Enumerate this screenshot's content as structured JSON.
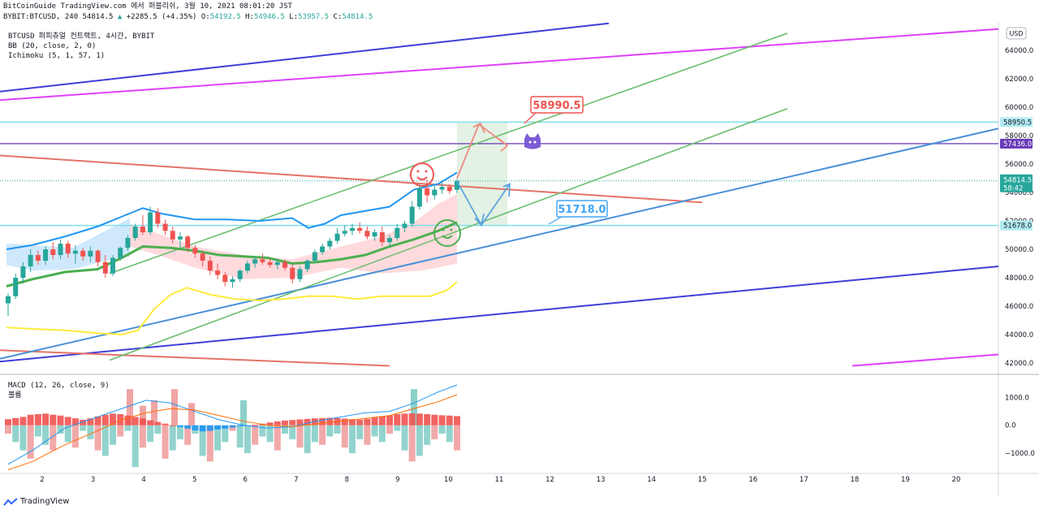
{
  "header": {
    "line1": "BitCoinGuide TradingView.com 에서 퍼블리쉬, 3월 10, 2021 08:01:20 JST",
    "symbol": "BYBIT:BTCUSD, 240",
    "last": "54814.5",
    "arrow": "▲",
    "change": "+2285.5 (+4.35%)",
    "o_label": "O:",
    "o": "54192.5",
    "h_label": "H:",
    "h": "54946.5",
    "l_label": "L:",
    "l": "53957.5",
    "c_label": "C:",
    "c": "54814.5"
  },
  "legend": {
    "title": "BTCUSD 퍼피츄얼 컨트랙트, 4시간, BYBIT",
    "bb": "BB (20, close, 2, 0)",
    "ichimoku": "Ichimoku (5, 1, 57, 1)"
  },
  "macd_legend": {
    "title": "MACD (12, 26, close, 9)",
    "sub": "볼륨"
  },
  "currency_button": "USD",
  "price_axis": {
    "ticks": [
      "64000.0",
      "62000.0",
      "60000.0",
      "58000.0",
      "56000.0",
      "54000.0",
      "52000.0",
      "50000.0",
      "48000.0",
      "46000.0",
      "44000.0",
      "42000.0"
    ],
    "tag_58950": "58950.5",
    "tag_57436": "57436.0",
    "tag_last": "54814.5",
    "tag_countdown": "58:42",
    "tag_51678": "51678.0"
  },
  "macd_axis": {
    "ticks": [
      "1000.0",
      "0.0",
      "−1000.0"
    ]
  },
  "x_axis": {
    "ticks": [
      "2",
      "3",
      "4",
      "5",
      "6",
      "7",
      "8",
      "9",
      "10",
      "11",
      "12",
      "13",
      "14",
      "15",
      "16",
      "17",
      "18",
      "19",
      "20"
    ]
  },
  "annotations": {
    "target_high": "58990.5",
    "target_low": "51718.0"
  },
  "colors": {
    "up": "#26a69a",
    "down": "#ef5350",
    "bb_basis": "#ef5350",
    "bb_band": "#2196f3",
    "ichimoku_lead": "#4caf50",
    "yellow": "#ffeb3b",
    "purple": "#673ab7",
    "magenta": "#e040fb",
    "navy": "#3f3fd8",
    "green_channel": "#66bb6a",
    "blue_trend": "#4a90d9",
    "red_trend": "#e57368",
    "teal_h": "#80deea"
  },
  "icons": {
    "smiley_red": "smiley-face-icon",
    "smiley_green": "smiley-face-icon",
    "mascot": "cat-mascot-icon",
    "logo": "tradingview-logo-icon"
  },
  "footer": {
    "brand": "TradingView"
  },
  "chart_data": {
    "type": "candlestick",
    "symbol": "BYBIT:BTCUSD",
    "timeframe": "240",
    "price_axis_range": [
      41000,
      66000
    ],
    "macd_axis_range": [
      -1700,
      1800
    ],
    "x_axis_days": [
      "2",
      "3",
      "4",
      "5",
      "6",
      "7",
      "8",
      "9",
      "10",
      "11",
      "12",
      "13",
      "14",
      "15",
      "16",
      "17",
      "18",
      "19",
      "20"
    ],
    "last_price": 54814.5,
    "horizontal_levels": [
      58950.5,
      57436.0,
      51678.0
    ],
    "targets": [
      58990.5,
      51718.0
    ],
    "candles_ohlc": [
      [
        46200,
        46900,
        45300,
        46700
      ],
      [
        46700,
        48300,
        46500,
        48000
      ],
      [
        48000,
        49100,
        47600,
        48800
      ],
      [
        48800,
        50000,
        48400,
        49600
      ],
      [
        49600,
        49900,
        48900,
        49200
      ],
      [
        49200,
        50200,
        48900,
        50000
      ],
      [
        50000,
        50500,
        49300,
        49600
      ],
      [
        49600,
        50700,
        49300,
        50400
      ],
      [
        50400,
        50600,
        49400,
        49700
      ],
      [
        49700,
        50300,
        49000,
        49900
      ],
      [
        49900,
        50100,
        49200,
        49500
      ],
      [
        49500,
        50200,
        49100,
        49900
      ],
      [
        49900,
        50000,
        48800,
        49100
      ],
      [
        49100,
        49600,
        48000,
        48300
      ],
      [
        48300,
        49600,
        48100,
        49400
      ],
      [
        49400,
        50200,
        49200,
        50100
      ],
      [
        50100,
        51000,
        49900,
        50800
      ],
      [
        50800,
        51800,
        50600,
        51600
      ],
      [
        51600,
        52400,
        51000,
        51200
      ],
      [
        51200,
        53000,
        51000,
        52600
      ],
      [
        52600,
        52900,
        51500,
        51800
      ],
      [
        51800,
        52100,
        51000,
        51300
      ],
      [
        51300,
        51600,
        50400,
        50700
      ],
      [
        50700,
        51200,
        50100,
        50900
      ],
      [
        50900,
        51000,
        49800,
        50100
      ],
      [
        50100,
        50300,
        49400,
        49700
      ],
      [
        49700,
        49900,
        48800,
        49200
      ],
      [
        49200,
        49500,
        48200,
        48500
      ],
      [
        48500,
        49000,
        47900,
        48200
      ],
      [
        48200,
        48400,
        47400,
        47700
      ],
      [
        47700,
        48100,
        47300,
        47900
      ],
      [
        47900,
        48600,
        47700,
        48500
      ],
      [
        48500,
        49200,
        48300,
        49000
      ],
      [
        49000,
        49500,
        48700,
        49300
      ],
      [
        49300,
        49700,
        48900,
        49100
      ],
      [
        49100,
        49400,
        48700,
        48900
      ],
      [
        48900,
        49300,
        48600,
        49100
      ],
      [
        49100,
        49300,
        48500,
        48700
      ],
      [
        48700,
        48900,
        47600,
        47900
      ],
      [
        47900,
        48800,
        47700,
        48600
      ],
      [
        48600,
        49300,
        48400,
        49200
      ],
      [
        49200,
        50000,
        49000,
        49800
      ],
      [
        49800,
        50400,
        49600,
        50200
      ],
      [
        50200,
        50800,
        50000,
        50600
      ],
      [
        50600,
        51500,
        50400,
        51100
      ],
      [
        51100,
        51700,
        50900,
        51300
      ],
      [
        51300,
        51800,
        51000,
        51500
      ],
      [
        51500,
        51900,
        51100,
        51300
      ],
      [
        51300,
        51600,
        50700,
        50900
      ],
      [
        50900,
        51400,
        50600,
        51200
      ],
      [
        51200,
        51600,
        50200,
        50500
      ],
      [
        50500,
        51000,
        50100,
        50800
      ],
      [
        50800,
        51800,
        50600,
        51500
      ],
      [
        51500,
        52000,
        51200,
        51800
      ],
      [
        51800,
        53400,
        51600,
        53000
      ],
      [
        53000,
        54600,
        52800,
        54300
      ],
      [
        54300,
        54900,
        53300,
        53800
      ],
      [
        53800,
        54500,
        53500,
        54200
      ],
      [
        54200,
        54800,
        53900,
        54400
      ],
      [
        54400,
        54600,
        53900,
        54100
      ],
      [
        54192.5,
        54946.5,
        53957.5,
        54814.5
      ]
    ],
    "macd": {
      "fast": 12,
      "slow": 26,
      "signal": 9,
      "histogram": [
        220,
        260,
        300,
        380,
        400,
        420,
        380,
        350,
        300,
        250,
        200,
        250,
        320,
        380,
        420,
        400,
        350,
        300,
        250,
        180,
        120,
        60,
        0,
        -60,
        -120,
        -180,
        -220,
        -200,
        -150,
        -120,
        -80,
        -40,
        -20,
        20,
        60,
        100,
        140,
        170,
        190,
        210,
        230,
        250,
        260,
        270,
        260,
        240,
        220,
        200,
        230,
        280,
        320,
        360,
        400,
        420,
        430,
        420,
        400,
        380,
        360,
        350,
        330
      ],
      "volume": [
        -300,
        -600,
        -900,
        -1200,
        -400,
        -700,
        -900,
        -300,
        -600,
        -800,
        -200,
        -500,
        -900,
        -1100,
        -700,
        -400,
        -200,
        -1500,
        -800,
        -600,
        -300,
        -1200,
        -900,
        -500,
        -700,
        -300,
        -1100,
        -1300,
        -900,
        -600,
        -200,
        -800,
        -1000,
        -700,
        -400,
        -600,
        -900,
        -300,
        -500,
        -800,
        -1000,
        -600,
        -700,
        -400,
        -300,
        -800,
        -1000,
        -500,
        -700,
        -400,
        -600,
        -300,
        -200,
        -900,
        -1300,
        -1100,
        -700,
        -500,
        -300,
        -600,
        -900
      ]
    }
  }
}
